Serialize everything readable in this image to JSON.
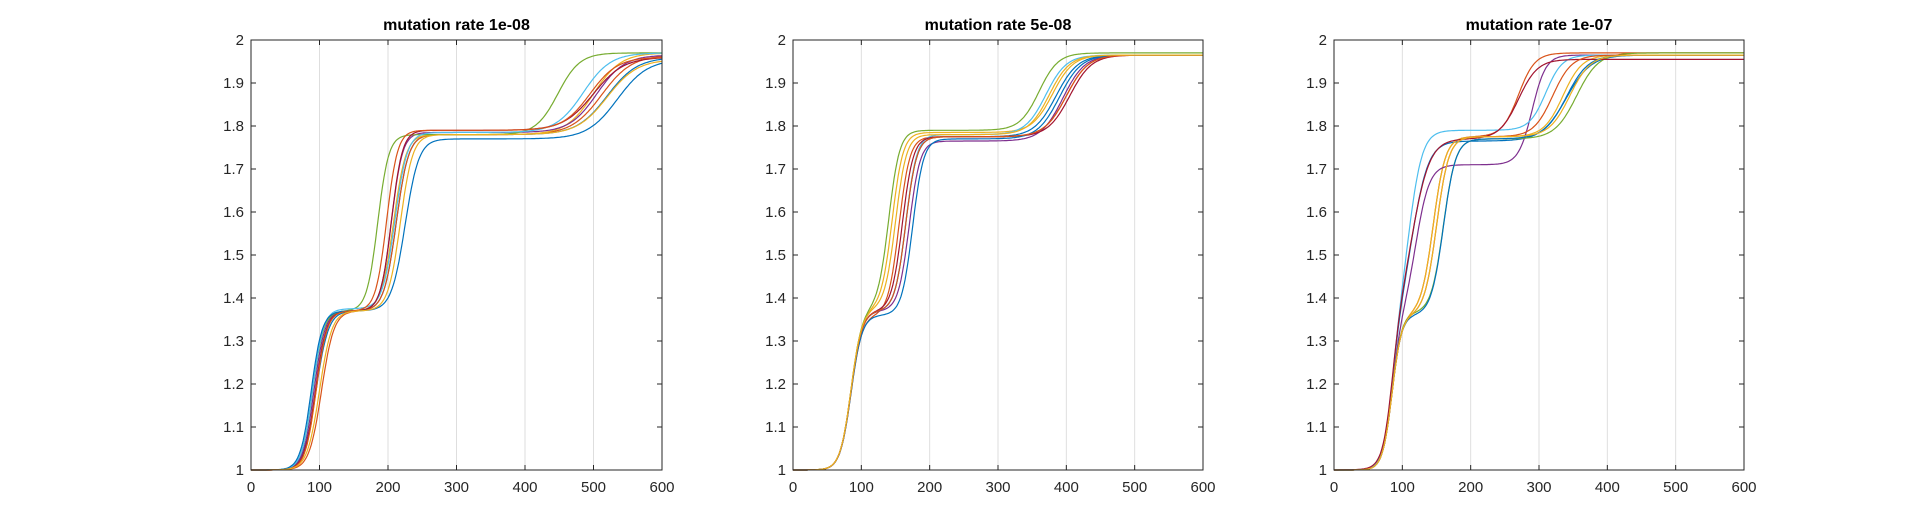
{
  "chart_data": [
    {
      "type": "line",
      "title": "mutation rate 1e-08",
      "xlim": [
        0,
        600
      ],
      "ylim": [
        1,
        2
      ],
      "xticks": [
        0,
        100,
        200,
        300,
        400,
        500,
        600
      ],
      "yticks": [
        1,
        1.1,
        1.2,
        1.3,
        1.4,
        1.5,
        1.6,
        1.7,
        1.8,
        1.9,
        2
      ],
      "grid": "vertical",
      "series": [
        {
          "color": "#0072BD",
          "stages": [
            [
              1.37,
              95,
              9
            ],
            [
              1.78,
              212,
              9
            ],
            [
              1.96,
              520,
              22
            ]
          ]
        },
        {
          "color": "#D95319",
          "stages": [
            [
              1.37,
              103,
              9
            ],
            [
              1.78,
              212,
              9
            ],
            [
              1.965,
              512,
              22
            ]
          ]
        },
        {
          "color": "#EDB120",
          "stages": [
            [
              1.37,
              95,
              8
            ],
            [
              1.78,
              208,
              9
            ],
            [
              1.97,
              500,
              20
            ]
          ]
        },
        {
          "color": "#7E2F8E",
          "stages": [
            [
              1.37,
              92,
              8
            ],
            [
              1.785,
              205,
              8
            ],
            [
              1.965,
              505,
              20
            ]
          ]
        },
        {
          "color": "#77AC30",
          "stages": [
            [
              1.37,
              90,
              8
            ],
            [
              1.78,
              185,
              8
            ],
            [
              1.97,
              448,
              16
            ]
          ]
        },
        {
          "color": "#4DBEEE",
          "stages": [
            [
              1.375,
              90,
              8
            ],
            [
              1.785,
              210,
              9
            ],
            [
              1.97,
              485,
              20
            ]
          ]
        },
        {
          "color": "#A2142F",
          "stages": [
            [
              1.37,
              94,
              8
            ],
            [
              1.79,
              205,
              8
            ],
            [
              1.96,
              500,
              22
            ]
          ]
        },
        {
          "color": "#0072BD",
          "stages": [
            [
              1.37,
              88,
              8
            ],
            [
              1.77,
              225,
              10
            ],
            [
              1.955,
              535,
              22
            ]
          ]
        },
        {
          "color": "#D95319",
          "stages": [
            [
              1.37,
              95,
              8
            ],
            [
              1.79,
              198,
              8
            ],
            [
              1.96,
              495,
              20
            ]
          ]
        },
        {
          "color": "#EDB120",
          "stages": [
            [
              1.37,
              100,
              9
            ],
            [
              1.78,
              218,
              9
            ],
            [
              1.955,
              520,
              22
            ]
          ]
        }
      ]
    },
    {
      "type": "line",
      "title": "mutation rate 5e-08",
      "xlim": [
        0,
        600
      ],
      "ylim": [
        1,
        2
      ],
      "xticks": [
        0,
        100,
        200,
        300,
        400,
        500,
        600
      ],
      "yticks": [
        1,
        1.1,
        1.2,
        1.3,
        1.4,
        1.5,
        1.6,
        1.7,
        1.8,
        1.9,
        2
      ],
      "grid": "vertical",
      "series": [
        {
          "color": "#0072BD",
          "stages": [
            [
              1.37,
              85,
              8
            ],
            [
              1.775,
              165,
              8
            ],
            [
              1.965,
              385,
              16
            ]
          ]
        },
        {
          "color": "#D95319",
          "stages": [
            [
              1.36,
              85,
              8
            ],
            [
              1.775,
              155,
              8
            ],
            [
              1.965,
              400,
              16
            ]
          ]
        },
        {
          "color": "#EDB120",
          "stages": [
            [
              1.375,
              85,
              8
            ],
            [
              1.785,
              145,
              8
            ],
            [
              1.965,
              380,
              15
            ]
          ]
        },
        {
          "color": "#7E2F8E",
          "stages": [
            [
              1.37,
              85,
              8
            ],
            [
              1.765,
              170,
              8
            ],
            [
              1.965,
              395,
              16
            ]
          ]
        },
        {
          "color": "#77AC30",
          "stages": [
            [
              1.375,
              85,
              8
            ],
            [
              1.79,
              140,
              8
            ],
            [
              1.97,
              360,
              14
            ]
          ]
        },
        {
          "color": "#4DBEEE",
          "stages": [
            [
              1.37,
              85,
              8
            ],
            [
              1.78,
              165,
              8
            ],
            [
              1.965,
              370,
              15
            ]
          ]
        },
        {
          "color": "#A2142F",
          "stages": [
            [
              1.37,
              85,
              8
            ],
            [
              1.775,
              160,
              8
            ],
            [
              1.965,
              405,
              16
            ]
          ]
        },
        {
          "color": "#0072BD",
          "stages": [
            [
              1.36,
              85,
              8
            ],
            [
              1.77,
              175,
              8
            ],
            [
              1.965,
              390,
              16
            ]
          ]
        },
        {
          "color": "#D95319",
          "stages": [
            [
              1.37,
              85,
              8
            ],
            [
              1.775,
              165,
              8
            ],
            [
              1.965,
              400,
              16
            ]
          ]
        },
        {
          "color": "#EDB120",
          "stages": [
            [
              1.375,
              85,
              8
            ],
            [
              1.78,
              150,
              8
            ],
            [
              1.965,
              375,
              15
            ]
          ]
        }
      ]
    },
    {
      "type": "line",
      "title": "mutation rate 1e-07",
      "xlim": [
        0,
        600
      ],
      "ylim": [
        1,
        2
      ],
      "xticks": [
        0,
        100,
        200,
        300,
        400,
        500,
        600
      ],
      "yticks": [
        1,
        1.1,
        1.2,
        1.3,
        1.4,
        1.5,
        1.6,
        1.7,
        1.8,
        1.9,
        2
      ],
      "grid": "vertical",
      "series": [
        {
          "color": "#0072BD",
          "stages": [
            [
              1.34,
              85,
              7
            ],
            [
              1.765,
              115,
              12
            ],
            [
              1.965,
              340,
              18
            ]
          ]
        },
        {
          "color": "#D95319",
          "stages": [
            [
              1.36,
              85,
              7
            ],
            [
              1.775,
              145,
              9
            ],
            [
              1.97,
              270,
              12
            ]
          ]
        },
        {
          "color": "#EDB120",
          "stages": [
            [
              1.36,
              85,
              7
            ],
            [
              1.775,
              145,
              9
            ],
            [
              1.965,
              335,
              14
            ]
          ]
        },
        {
          "color": "#7E2F8E",
          "stages": [
            [
              1.35,
              85,
              7
            ],
            [
              1.71,
              120,
              10
            ],
            [
              1.965,
              290,
              10
            ]
          ]
        },
        {
          "color": "#77AC30",
          "stages": [
            [
              1.365,
              85,
              7
            ],
            [
              1.77,
              160,
              9
            ],
            [
              1.97,
              355,
              16
            ]
          ]
        },
        {
          "color": "#4DBEEE",
          "stages": [
            [
              1.34,
              85,
              7
            ],
            [
              1.79,
              110,
              10
            ],
            [
              1.965,
              310,
              12
            ]
          ]
        },
        {
          "color": "#A2142F",
          "stages": [
            [
              1.34,
              85,
              7
            ],
            [
              1.77,
              115,
              13
            ],
            [
              1.955,
              270,
              14
            ]
          ]
        },
        {
          "color": "#0072BD",
          "stages": [
            [
              1.36,
              85,
              7
            ],
            [
              1.77,
              160,
              9
            ],
            [
              1.965,
              340,
              16
            ]
          ]
        },
        {
          "color": "#D95319",
          "stages": [
            [
              1.36,
              85,
              7
            ],
            [
              1.775,
              150,
              9
            ],
            [
              1.965,
              320,
              14
            ]
          ]
        },
        {
          "color": "#EDB120",
          "stages": [
            [
              1.36,
              85,
              7
            ],
            [
              1.775,
              150,
              9
            ],
            [
              1.965,
              345,
              15
            ]
          ]
        }
      ]
    }
  ]
}
